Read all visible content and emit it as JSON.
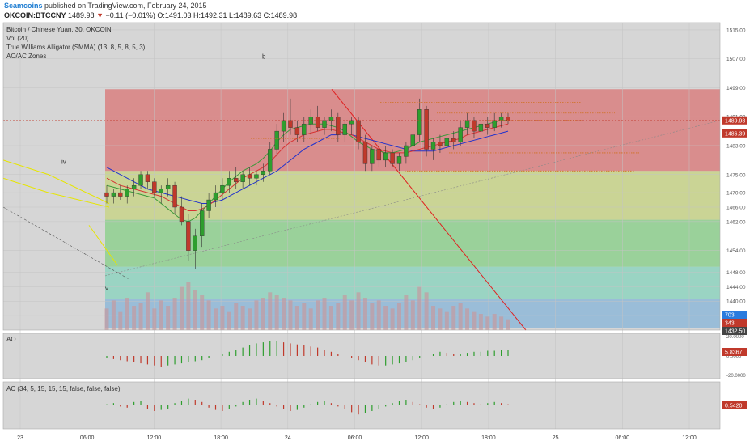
{
  "header": {
    "site": "Scamcoins",
    "published": "published on TradingView.com, February 24, 2015",
    "symbol": "OKCOIN:BTCCNY",
    "last": "1489.98",
    "arrow": "▼",
    "change": "−0.11 (−0.01%)",
    "ohlc": {
      "O": "O:",
      "O_val": "1491.03",
      "H": "H:",
      "H_val": "1492.31",
      "L": "L:",
      "L_val": "1489.63",
      "C": "C:",
      "C_val": "1489.98"
    }
  },
  "legend": {
    "title": "Bitcoin / Chinese Yuan, 30, OKCOIN",
    "vol": "Vol (20)",
    "alligator": "True Williams Alligator (SMMA) (13, 8, 5, 8, 5, 3)",
    "zones": "AO/AC Zones"
  },
  "annotations": {
    "b": "b",
    "iv": "iv",
    "v": "v"
  },
  "chart_data": {
    "type": "candlestick",
    "title": "Bitcoin / Chinese Yuan, 30, OKCOIN",
    "y_axis_ticks": [
      "1515.00",
      "1507.00",
      "1499.00",
      "1491.00",
      "1483.00",
      "1475.00",
      "1470.00",
      "1466.00",
      "1462.00",
      "1454.00",
      "1448.00",
      "1444.00",
      "1440.00",
      "1436.00"
    ],
    "x_axis_ticks": [
      "23",
      "06:00",
      "12:00",
      "18:00",
      "24",
      "06:00",
      "12:00",
      "18:00",
      "25",
      "06:00",
      "12:00"
    ],
    "ylim": [
      1432,
      1517
    ],
    "price_badges": [
      {
        "label": "1489.98",
        "color": "#c0392b"
      },
      {
        "label": "1486.39",
        "color": "#c0392b"
      },
      {
        "label": "703",
        "color": "#2a7bde"
      },
      {
        "label": "343",
        "color": "#c0392b"
      },
      {
        "label": "1432.50",
        "color": "#444444"
      }
    ],
    "fib_zones": [
      {
        "from": 1498.6,
        "to": 1476.0,
        "color": "#d98080"
      },
      {
        "from": 1476.0,
        "to": 1462.5,
        "color": "#c8d38a"
      },
      {
        "from": 1462.5,
        "to": 1449.5,
        "color": "#8fd08f"
      },
      {
        "from": 1449.5,
        "to": 1440.5,
        "color": "#8fd3bf"
      },
      {
        "from": 1440.5,
        "to": 1432.5,
        "color": "#8fb8d8"
      }
    ],
    "candles": [
      [
        1470,
        1472,
        1467,
        1469
      ],
      [
        1469,
        1471,
        1467,
        1470
      ],
      [
        1470,
        1472,
        1468,
        1469
      ],
      [
        1469,
        1472,
        1467,
        1471
      ],
      [
        1471,
        1474,
        1469,
        1472
      ],
      [
        1472,
        1476,
        1471,
        1475
      ],
      [
        1475,
        1476,
        1471,
        1473
      ],
      [
        1473,
        1474,
        1469,
        1470
      ],
      [
        1470,
        1472,
        1467,
        1471
      ],
      [
        1471,
        1474,
        1469,
        1472
      ],
      [
        1472,
        1473,
        1464,
        1466
      ],
      [
        1466,
        1469,
        1461,
        1462
      ],
      [
        1462,
        1464,
        1451,
        1454
      ],
      [
        1454,
        1460,
        1449,
        1458
      ],
      [
        1458,
        1467,
        1455,
        1465
      ],
      [
        1465,
        1470,
        1463,
        1468
      ],
      [
        1468,
        1472,
        1466,
        1470
      ],
      [
        1470,
        1474,
        1468,
        1472
      ],
      [
        1472,
        1476,
        1470,
        1474
      ],
      [
        1474,
        1477,
        1471,
        1473
      ],
      [
        1473,
        1476,
        1471,
        1475
      ],
      [
        1475,
        1477,
        1472,
        1474
      ],
      [
        1474,
        1476,
        1472,
        1475
      ],
      [
        1475,
        1478,
        1473,
        1476
      ],
      [
        1476,
        1484,
        1475,
        1482
      ],
      [
        1482,
        1489,
        1480,
        1487
      ],
      [
        1487,
        1492,
        1484,
        1490
      ],
      [
        1490,
        1496,
        1486,
        1488
      ],
      [
        1488,
        1490,
        1484,
        1486
      ],
      [
        1486,
        1491,
        1484,
        1489
      ],
      [
        1489,
        1493,
        1486,
        1491
      ],
      [
        1491,
        1494,
        1487,
        1488
      ],
      [
        1488,
        1491,
        1486,
        1490
      ],
      [
        1490,
        1493,
        1487,
        1491
      ],
      [
        1491,
        1492,
        1484,
        1486
      ],
      [
        1486,
        1490,
        1484,
        1489
      ],
      [
        1489,
        1491,
        1486,
        1490
      ],
      [
        1490,
        1491,
        1482,
        1484
      ],
      [
        1484,
        1486,
        1476,
        1478
      ],
      [
        1478,
        1483,
        1476,
        1482
      ],
      [
        1482,
        1484,
        1477,
        1479
      ],
      [
        1479,
        1483,
        1477,
        1481
      ],
      [
        1481,
        1482,
        1477,
        1478
      ],
      [
        1478,
        1481,
        1476,
        1480
      ],
      [
        1480,
        1484,
        1478,
        1483
      ],
      [
        1483,
        1488,
        1481,
        1486
      ],
      [
        1486,
        1496,
        1484,
        1493
      ],
      [
        1493,
        1494,
        1480,
        1482
      ],
      [
        1482,
        1485,
        1479,
        1484
      ],
      [
        1484,
        1486,
        1481,
        1483
      ],
      [
        1483,
        1486,
        1482,
        1485
      ],
      [
        1485,
        1487,
        1482,
        1484
      ],
      [
        1484,
        1490,
        1483,
        1488
      ],
      [
        1488,
        1492,
        1486,
        1490
      ],
      [
        1490,
        1491,
        1485,
        1487
      ],
      [
        1487,
        1490,
        1485,
        1489
      ],
      [
        1489,
        1491,
        1486,
        1488
      ],
      [
        1488,
        1492,
        1487,
        1490
      ],
      [
        1490,
        1492,
        1488,
        1491
      ],
      [
        1491,
        1492,
        1489,
        1490
      ]
    ],
    "series": [
      {
        "name": "jaw",
        "color": "#2233cc",
        "values": [
          1477,
          1476,
          1475,
          1474,
          1473,
          1472,
          1471,
          1470.5,
          1470,
          1469.5,
          1469,
          1468.5,
          1468,
          1467.5,
          1467,
          1467,
          1467.5,
          1468,
          1469,
          1470,
          1471,
          1472,
          1473,
          1474,
          1475,
          1476,
          1477.5,
          1479,
          1480.5,
          1482,
          1483,
          1484,
          1485,
          1486,
          1486,
          1486.5,
          1486,
          1485.5,
          1485,
          1484.5,
          1484,
          1483.5,
          1483,
          1482.5,
          1482,
          1481.5,
          1481.5,
          1481.5,
          1481.5,
          1482,
          1482.5,
          1483,
          1483.5,
          1484,
          1484.5,
          1485,
          1485.5,
          1486,
          1486.5,
          1487
        ]
      },
      {
        "name": "teeth",
        "color": "#d63333",
        "values": [
          1474,
          1473,
          1472,
          1471.5,
          1471,
          1470.5,
          1470,
          1469.5,
          1469,
          1468,
          1467,
          1466,
          1465,
          1465,
          1465.5,
          1466.5,
          1468,
          1469.5,
          1471,
          1472.5,
          1474,
          1475,
          1476,
          1477,
          1478.5,
          1480.5,
          1482.5,
          1484,
          1485,
          1486,
          1486.5,
          1487,
          1487.5,
          1487.5,
          1487,
          1486.5,
          1486,
          1485,
          1484,
          1483,
          1482,
          1481.5,
          1481,
          1481,
          1481,
          1481.5,
          1482,
          1482.5,
          1483,
          1483.5,
          1484,
          1484.5,
          1485,
          1486,
          1486.5,
          1487,
          1487.5,
          1488,
          1488.5,
          1489
        ]
      },
      {
        "name": "lips",
        "color": "#3a9a3a",
        "values": [
          1472,
          1471.5,
          1471,
          1470.5,
          1470,
          1469.5,
          1469,
          1468.5,
          1467,
          1465.5,
          1464,
          1462.5,
          1462,
          1463,
          1465,
          1467,
          1469,
          1471,
          1473,
          1474.5,
          1476,
          1477,
          1478,
          1479.5,
          1481.5,
          1484,
          1486,
          1487.5,
          1488,
          1488.5,
          1489,
          1489,
          1489,
          1488.5,
          1488,
          1487,
          1485.5,
          1484,
          1483,
          1482,
          1481.5,
          1481,
          1481,
          1481.5,
          1482,
          1483,
          1484,
          1484.5,
          1485,
          1485.5,
          1486,
          1486.5,
          1487,
          1487.5,
          1488,
          1488.5,
          1489,
          1489.5,
          1490,
          1490
        ]
      }
    ],
    "volume": [
      40,
      55,
      35,
      60,
      45,
      50,
      70,
      40,
      55,
      45,
      60,
      80,
      90,
      75,
      65,
      55,
      40,
      45,
      35,
      50,
      45,
      40,
      55,
      60,
      70,
      65,
      60,
      55,
      45,
      50,
      40,
      55,
      60,
      45,
      50,
      65,
      55,
      70,
      60,
      50,
      55,
      45,
      40,
      50,
      65,
      55,
      80,
      70,
      45,
      40,
      35,
      45,
      50,
      40,
      35,
      30,
      25,
      30,
      25,
      20
    ],
    "ao_label": "AO",
    "ao_badge": "5.8367",
    "ao_ticks": [
      "20.0000",
      "0.0000",
      "-20.0000"
    ],
    "ao": [
      -2,
      -3,
      -4,
      -5,
      -6,
      -7,
      -8,
      -9,
      -10,
      -9,
      -8,
      -7,
      -6,
      -5,
      -4,
      -2,
      0,
      2,
      4,
      6,
      8,
      10,
      12,
      13,
      14,
      14,
      13,
      12,
      11,
      10,
      9,
      8,
      6,
      4,
      2,
      0,
      -2,
      -4,
      -6,
      -8,
      -9,
      -9,
      -8,
      -7,
      -6,
      -4,
      -2,
      0,
      2,
      4,
      3,
      2,
      2,
      3,
      4,
      4,
      5,
      5,
      6,
      6
    ],
    "ac_label": "AC (34, 5, 15, 15, 15, false, false, false)",
    "ac_badge": "0.5420",
    "ac": [
      1,
      2,
      -1,
      -2,
      3,
      4,
      -3,
      -5,
      -4,
      -3,
      2,
      4,
      6,
      5,
      3,
      -2,
      -4,
      -5,
      -3,
      -1,
      3,
      5,
      6,
      4,
      2,
      -1,
      -3,
      -5,
      -4,
      -2,
      1,
      3,
      4,
      2,
      -1,
      -3,
      -6,
      -8,
      -7,
      -5,
      -3,
      -1,
      2,
      4,
      5,
      3,
      1,
      -2,
      -3,
      -2,
      1,
      3,
      4,
      3,
      2,
      1,
      2,
      3,
      2,
      1
    ]
  },
  "colors": {
    "up": "#2e9e2e",
    "down": "#c0392b",
    "vol": "#c49aa0",
    "panel_bg": "#d6d6d6"
  }
}
